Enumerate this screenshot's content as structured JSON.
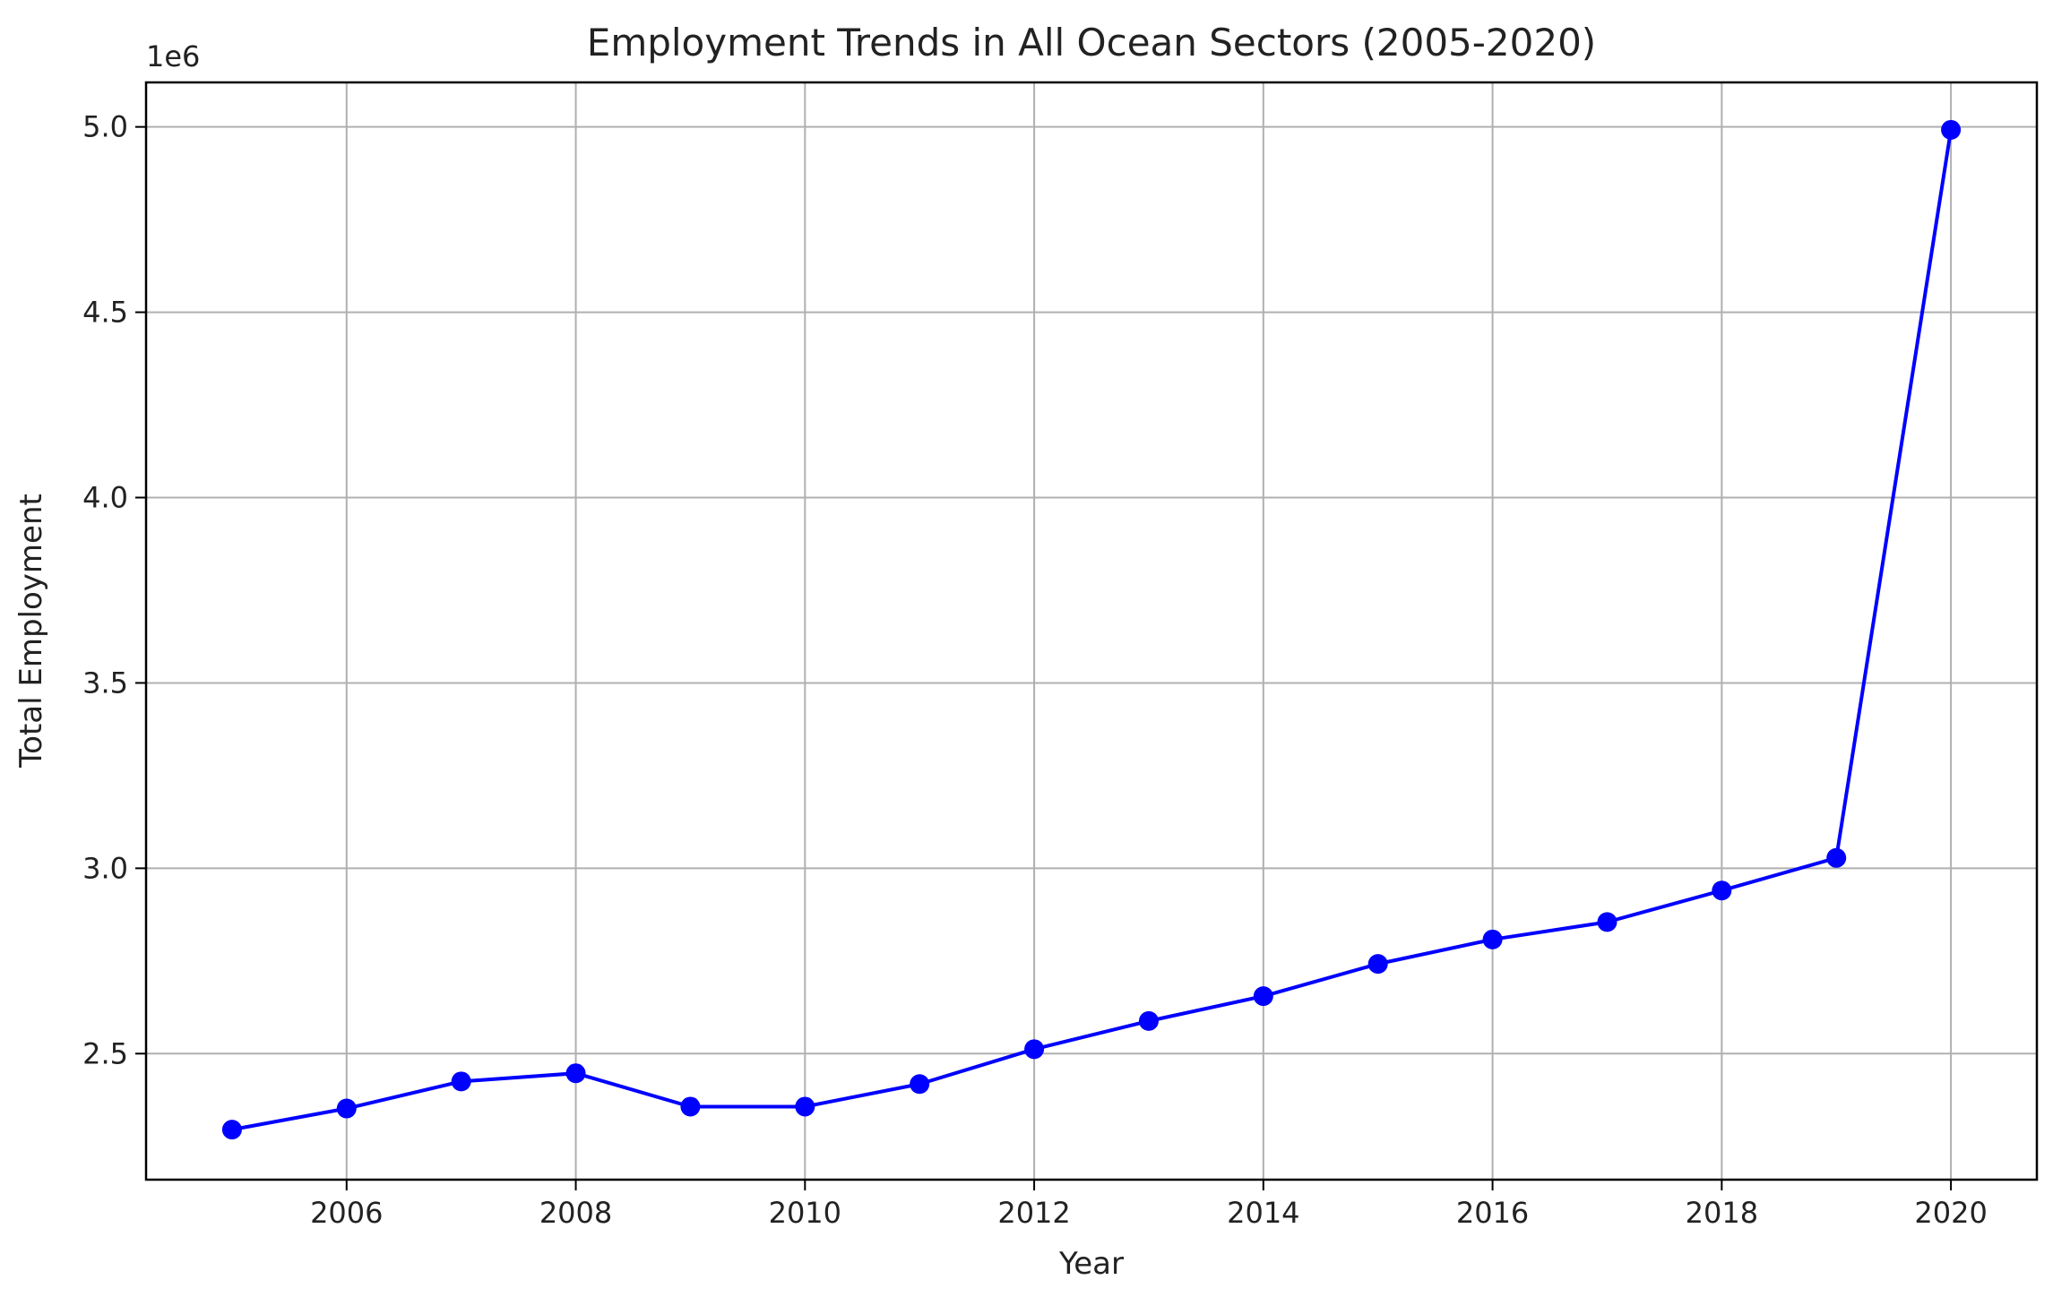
{
  "chart_data": {
    "type": "line",
    "title": "Employment Trends in All Ocean Sectors (2005-2020)",
    "xlabel": "Year",
    "ylabel": "Total Employment",
    "y_offset_label": "1e6",
    "x": [
      2005,
      2006,
      2007,
      2008,
      2009,
      2010,
      2011,
      2012,
      2013,
      2014,
      2015,
      2016,
      2017,
      2018,
      2019,
      2020
    ],
    "series": [
      {
        "values": [
          2295000,
          2352000,
          2425000,
          2447000,
          2357000,
          2357000,
          2418000,
          2512000,
          2588000,
          2655000,
          2742000,
          2808000,
          2855000,
          2940000,
          3028000,
          4992000
        ],
        "color": "#0000ff",
        "marker": "circle"
      }
    ],
    "xlim": [
      2004.25,
      2020.75
    ],
    "ylim": [
      2160000,
      5120000
    ],
    "x_ticks": [
      2006,
      2008,
      2010,
      2012,
      2014,
      2016,
      2018,
      2020
    ],
    "x_tick_labels": [
      "2006",
      "2008",
      "2010",
      "2012",
      "2014",
      "2016",
      "2018",
      "2020"
    ],
    "y_ticks": [
      2500000,
      3000000,
      3500000,
      4000000,
      4500000,
      5000000
    ],
    "y_tick_labels": [
      "2.5",
      "3.0",
      "3.5",
      "4.0",
      "4.5",
      "5.0"
    ],
    "grid": true,
    "grid_color": "#b0b0b0"
  }
}
